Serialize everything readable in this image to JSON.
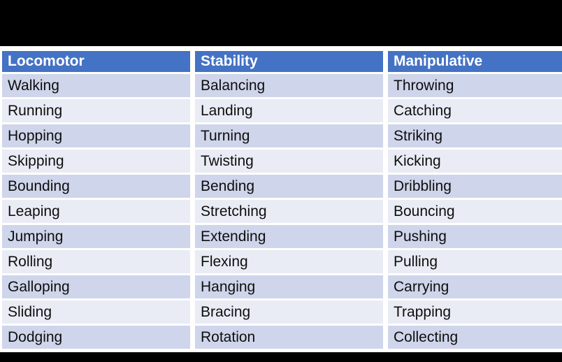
{
  "table": {
    "headers": [
      "Locomotor",
      "Stability",
      "Manipulative"
    ],
    "rows": [
      [
        "Walking",
        "Balancing",
        "Throwing"
      ],
      [
        "Running",
        "Landing",
        "Catching"
      ],
      [
        "Hopping",
        "Turning",
        "Striking"
      ],
      [
        "Skipping",
        "Twisting",
        "Kicking"
      ],
      [
        "Bounding",
        "Bending",
        "Dribbling"
      ],
      [
        "Leaping",
        "Stretching",
        "Bouncing"
      ],
      [
        "Jumping",
        "Extending",
        "Pushing"
      ],
      [
        "Rolling",
        "Flexing",
        "Pulling"
      ],
      [
        "Galloping",
        "Hanging",
        "Carrying"
      ],
      [
        "Sliding",
        "Bracing",
        "Trapping"
      ],
      [
        "Dodging",
        "Rotation",
        "Collecting"
      ]
    ],
    "colors": {
      "header_bg": "#4472C4",
      "header_text": "#FFFFFF",
      "band_dark": "#CFD5EA",
      "band_light": "#E9ECF5",
      "row_gap": "#FFFFFF",
      "body_text": "#0E0E0E",
      "letterbox": "#000000"
    }
  }
}
